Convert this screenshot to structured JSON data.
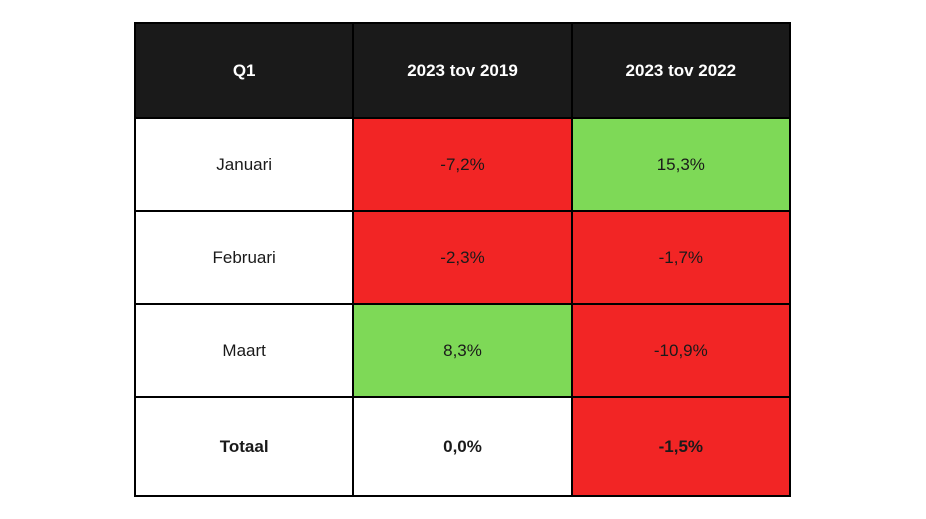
{
  "colors": {
    "red": "#F22525",
    "green": "#7ED957",
    "white": "#FFFFFF",
    "header_bg": "#1A1A1A",
    "header_text": "#FFFFFF",
    "cell_text": "#1A1A1A",
    "border": "#000000"
  },
  "chart_data": {
    "type": "table",
    "title": "Q1",
    "columns": [
      "Q1",
      "2023 tov 2019",
      "2023 tov 2022"
    ],
    "rows": [
      {
        "label": "Januari",
        "values": [
          {
            "text": "-7,2%",
            "number": -7.2,
            "color": "red"
          },
          {
            "text": "15,3%",
            "number": 15.3,
            "color": "green"
          }
        ]
      },
      {
        "label": "Februari",
        "values": [
          {
            "text": "-2,3%",
            "number": -2.3,
            "color": "red"
          },
          {
            "text": "-1,7%",
            "number": -1.7,
            "color": "red"
          }
        ]
      },
      {
        "label": "Maart",
        "values": [
          {
            "text": "8,3%",
            "number": 8.3,
            "color": "green"
          },
          {
            "text": "-10,9%",
            "number": -10.9,
            "color": "red"
          }
        ]
      },
      {
        "label": "Totaal",
        "values": [
          {
            "text": "0,0%",
            "number": 0.0,
            "color": "white"
          },
          {
            "text": "-1,5%",
            "number": -1.5,
            "color": "red"
          }
        ]
      }
    ]
  }
}
